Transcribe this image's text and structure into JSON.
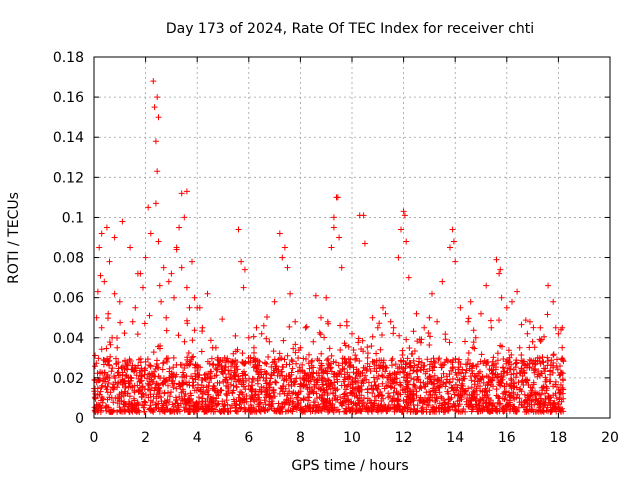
{
  "chart_data": {
    "type": "scatter",
    "title": "Day 173 of 2024, Rate Of TEC Index for receiver chti",
    "xlabel": "GPS time / hours",
    "ylabel": "ROTI / TECUs",
    "xlim": [
      0,
      20
    ],
    "ylim": [
      0,
      0.18
    ],
    "xticks": [
      0,
      2,
      4,
      6,
      8,
      10,
      12,
      14,
      16,
      18,
      20
    ],
    "yticks": [
      0,
      0.02,
      0.04,
      0.06,
      0.08,
      0.1,
      0.12,
      0.14,
      0.16,
      0.18
    ],
    "xtick_labels": [
      "0",
      "2",
      "4",
      "6",
      "8",
      "10",
      "12",
      "14",
      "16",
      "18",
      "20"
    ],
    "ytick_labels": [
      "0",
      "0.02",
      "0.04",
      "0.06",
      "0.08",
      "0.1",
      "0.12",
      "0.14",
      "0.16",
      "0.18"
    ],
    "grid": true,
    "marker": "+",
    "series": [
      {
        "name": "ROTI",
        "color": "#ff0000",
        "x": [
          0.05,
          0.1,
          0.15,
          0.2,
          0.25,
          0.3,
          0.4,
          0.5,
          0.55,
          0.6,
          0.7,
          0.8,
          0.9,
          1.0,
          1.2,
          1.4,
          1.5,
          1.6,
          1.8,
          1.9,
          2.0,
          2.1,
          2.2,
          2.3,
          2.35,
          2.4,
          2.45,
          2.5,
          2.55,
          2.6,
          2.7,
          2.8,
          2.9,
          3.0,
          3.1,
          3.2,
          3.3,
          3.4,
          3.5,
          3.6,
          3.7,
          3.8,
          3.9,
          4.0,
          4.2,
          4.4,
          4.6,
          4.8,
          5.0,
          5.2,
          5.4,
          5.6,
          5.7,
          5.8,
          6.0,
          6.2,
          6.5,
          6.8,
          7.0,
          7.2,
          7.3,
          7.5,
          7.6,
          7.8,
          8.0,
          8.2,
          8.5,
          8.8,
          9.0,
          9.2,
          9.3,
          9.4,
          9.5,
          9.6,
          9.8,
          10.0,
          10.3,
          10.5,
          10.8,
          11.0,
          11.3,
          11.5,
          11.8,
          11.9,
          12.0,
          12.1,
          12.2,
          12.5,
          12.8,
          13.0,
          13.3,
          13.5,
          13.8,
          13.9,
          14.0,
          14.2,
          14.5,
          14.8,
          15.0,
          15.2,
          15.4,
          15.6,
          15.7,
          15.8,
          16.0,
          16.2,
          16.4,
          16.5,
          16.8,
          17.0,
          17.2,
          17.4,
          17.6,
          17.8,
          17.9,
          18.0,
          18.1,
          18.15,
          0.3,
          1.1,
          1.7,
          2.45,
          2.5,
          3.6,
          3.4,
          2.4,
          9.45,
          9.3,
          12.05,
          13.95,
          15.75,
          10.45,
          6.3,
          4.1,
          5.85,
          7.4,
          8.6,
          11.2,
          13.1,
          14.6,
          16.9,
          17.3,
          0.8,
          3.2
        ],
        "y": [
          0.012,
          0.05,
          0.063,
          0.085,
          0.071,
          0.045,
          0.068,
          0.095,
          0.052,
          0.078,
          0.04,
          0.062,
          0.035,
          0.058,
          0.028,
          0.085,
          0.048,
          0.055,
          0.072,
          0.065,
          0.08,
          0.105,
          0.092,
          0.168,
          0.155,
          0.138,
          0.123,
          0.088,
          0.066,
          0.058,
          0.075,
          0.05,
          0.068,
          0.072,
          0.06,
          0.085,
          0.095,
          0.112,
          0.1,
          0.065,
          0.055,
          0.078,
          0.06,
          0.055,
          0.045,
          0.062,
          0.035,
          0.03,
          0.022,
          0.028,
          0.032,
          0.094,
          0.078,
          0.065,
          0.04,
          0.035,
          0.042,
          0.038,
          0.058,
          0.092,
          0.08,
          0.075,
          0.062,
          0.048,
          0.035,
          0.045,
          0.038,
          0.05,
          0.06,
          0.085,
          0.095,
          0.11,
          0.09,
          0.075,
          0.048,
          0.042,
          0.101,
          0.087,
          0.05,
          0.045,
          0.052,
          0.048,
          0.08,
          0.094,
          0.103,
          0.088,
          0.07,
          0.052,
          0.045,
          0.05,
          0.048,
          0.068,
          0.085,
          0.094,
          0.078,
          0.055,
          0.048,
          0.04,
          0.052,
          0.066,
          0.045,
          0.079,
          0.072,
          0.06,
          0.055,
          0.058,
          0.063,
          0.035,
          0.042,
          0.038,
          0.03,
          0.028,
          0.066,
          0.058,
          0.045,
          0.042,
          0.044,
          0.045,
          0.092,
          0.098,
          0.072,
          0.16,
          0.15,
          0.113,
          0.075,
          0.107,
          0.11,
          0.1,
          0.101,
          0.088,
          0.074,
          0.101,
          0.045,
          0.055,
          0.074,
          0.085,
          0.061,
          0.055,
          0.062,
          0.058,
          0.048,
          0.045,
          0.09,
          0.084
        ]
      }
    ],
    "dense_band": {
      "x_start": 0.0,
      "x_end": 18.2,
      "typical_y_min": 0.003,
      "typical_y_max": 0.03
    }
  }
}
